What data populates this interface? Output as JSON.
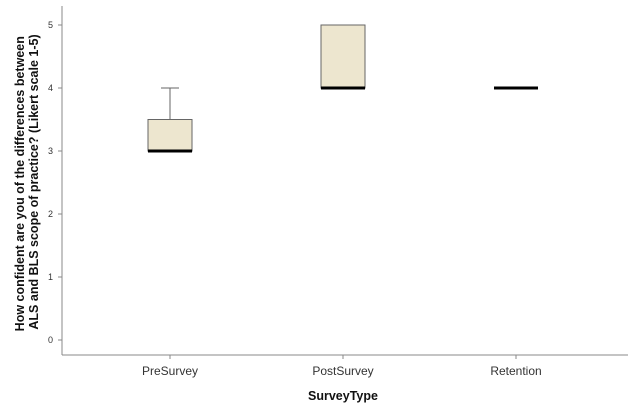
{
  "chart_data": {
    "type": "box",
    "xlabel": "SurveyType",
    "ylabel_line1": "How confident are you of the differences between",
    "ylabel_line2": "ALS and BLS scope of practice? (Likert scale 1-5)",
    "ylim": [
      0,
      5
    ],
    "yticks": [
      "0",
      "1",
      "2",
      "3",
      "4",
      "5"
    ],
    "categories": [
      "PreSurvey",
      "PostSurvey",
      "Retention"
    ],
    "boxes": [
      {
        "category": "PreSurvey",
        "min": 3,
        "q1": 3,
        "median": 3,
        "q3": 3.5,
        "max": 4
      },
      {
        "category": "PostSurvey",
        "min": 4,
        "q1": 4,
        "median": 4,
        "q3": 5,
        "max": 5
      },
      {
        "category": "Retention",
        "min": 4,
        "q1": 4,
        "median": 4,
        "q3": 4,
        "max": 4
      }
    ],
    "grid": false,
    "box_fill": "#ede6cf",
    "box_stroke": "#666666",
    "median_color": "#000000",
    "axis_color": "#888888"
  }
}
